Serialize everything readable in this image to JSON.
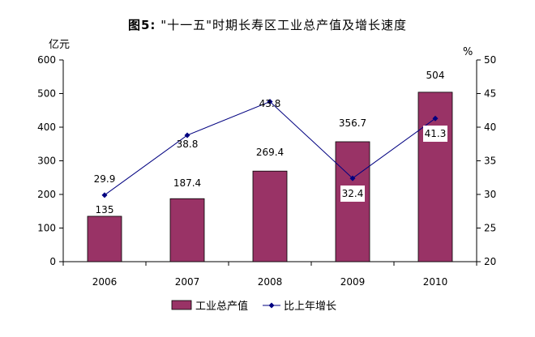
{
  "chart_data": {
    "type": "bar",
    "title_prefix": "图5:",
    "title_text": "\"十一五\"时期长寿区工业总产值及增长速度",
    "categories": [
      "2006",
      "2007",
      "2008",
      "2009",
      "2010"
    ],
    "series": [
      {
        "name": "工业总产值",
        "kind": "bar",
        "axis": "left",
        "values": [
          135,
          187.4,
          269.4,
          356.7,
          504
        ],
        "color": "#993366"
      },
      {
        "name": "比上年增长",
        "kind": "line",
        "axis": "right",
        "values": [
          29.9,
          38.8,
          43.8,
          32.4,
          41.3
        ],
        "color": "#000080"
      }
    ],
    "y_left": {
      "unit": "亿元",
      "min": 0,
      "max": 600,
      "ticks": [
        0,
        100,
        200,
        300,
        400,
        500,
        600
      ]
    },
    "y_right": {
      "unit": "%",
      "min": 20,
      "max": 50,
      "ticks": [
        20,
        25,
        30,
        35,
        40,
        45,
        50
      ]
    },
    "grid": false,
    "legend_position": "bottom"
  }
}
